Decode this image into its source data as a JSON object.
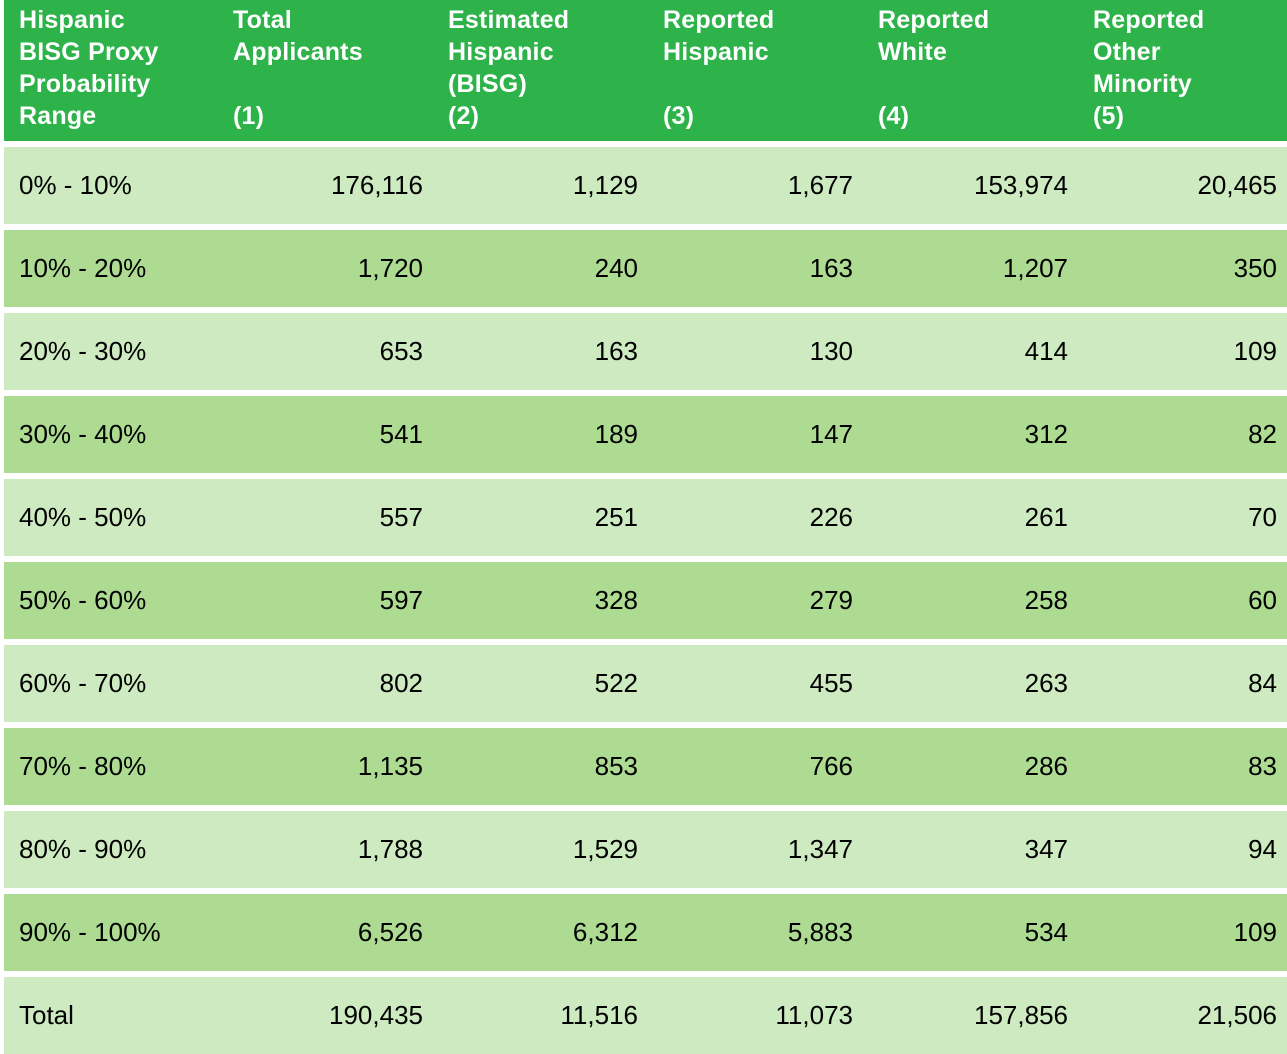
{
  "table": {
    "headers": [
      [
        "Hispanic",
        "BISG Proxy",
        "Probability",
        "Range"
      ],
      [
        "Total",
        "Applicants",
        "",
        "(1)"
      ],
      [
        "Estimated",
        "Hispanic",
        "(BISG)",
        "(2)"
      ],
      [
        "Reported",
        "Hispanic",
        "",
        "(3)"
      ],
      [
        "Reported",
        "White",
        "",
        "(4)"
      ],
      [
        "Reported",
        "Other",
        "Minority",
        "(5)"
      ]
    ],
    "rows": [
      [
        "0% - 10%",
        "176,116",
        "1,129",
        "1,677",
        "153,974",
        "20,465"
      ],
      [
        "10% - 20%",
        "1,720",
        "240",
        "163",
        "1,207",
        "350"
      ],
      [
        "20% - 30%",
        "653",
        "163",
        "130",
        "414",
        "109"
      ],
      [
        "30% - 40%",
        "541",
        "189",
        "147",
        "312",
        "82"
      ],
      [
        "40% - 50%",
        "557",
        "251",
        "226",
        "261",
        "70"
      ],
      [
        "50% - 60%",
        "597",
        "328",
        "279",
        "258",
        "60"
      ],
      [
        "60% - 70%",
        "802",
        "522",
        "455",
        "263",
        "84"
      ],
      [
        "70% - 80%",
        "1,135",
        "853",
        "766",
        "286",
        "83"
      ],
      [
        "80% - 90%",
        "1,788",
        "1,529",
        "1,347",
        "347",
        "94"
      ],
      [
        "90% - 100%",
        "6,526",
        "6,312",
        "5,883",
        "534",
        "109"
      ],
      [
        "Total",
        "190,435",
        "11,516",
        "11,073",
        "157,856",
        "21,506"
      ]
    ]
  },
  "colors": {
    "header_bg": "#2db34a",
    "row_light": "#cdeac0",
    "row_dark": "#acdb91"
  }
}
